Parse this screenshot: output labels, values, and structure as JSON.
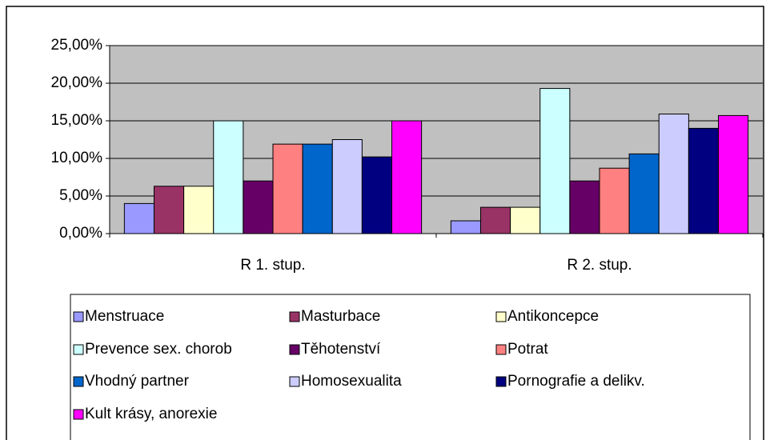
{
  "chart_data": {
    "type": "bar",
    "categories": [
      "R 1. stup.",
      "R 2. stup."
    ],
    "series": [
      {
        "name": "Menstruace",
        "color": "#9999ff",
        "values": [
          4.0,
          1.7
        ]
      },
      {
        "name": "Masturbace",
        "color": "#993366",
        "values": [
          6.3,
          3.5
        ]
      },
      {
        "name": "Antikoncepce",
        "color": "#ffffcc",
        "values": [
          6.3,
          3.5
        ]
      },
      {
        "name": "Prevence sex. chorob",
        "color": "#ccffff",
        "values": [
          15.0,
          19.3
        ]
      },
      {
        "name": "Těhotenství",
        "color": "#660066",
        "values": [
          7.0,
          7.0
        ]
      },
      {
        "name": "Potrat",
        "color": "#ff8080",
        "values": [
          11.9,
          8.7
        ]
      },
      {
        "name": "Vhodný partner",
        "color": "#0066cc",
        "values": [
          11.9,
          10.6
        ]
      },
      {
        "name": "Homosexualita",
        "color": "#ccccff",
        "values": [
          12.5,
          15.9
        ]
      },
      {
        "name": "Pornografie a delikv.",
        "color": "#000080",
        "values": [
          10.2,
          14.0
        ]
      },
      {
        "name": "Kult krásy, anorexie",
        "color": "#ff00ff",
        "values": [
          15.0,
          15.7
        ]
      }
    ],
    "ylim": [
      0,
      25
    ],
    "yticks": [
      {
        "value": 0,
        "label": "0,00%"
      },
      {
        "value": 5,
        "label": "5,00%"
      },
      {
        "value": 10,
        "label": "10,00%"
      },
      {
        "value": 15,
        "label": "15,00%"
      },
      {
        "value": 20,
        "label": "20,00%"
      },
      {
        "value": 25,
        "label": "25,00%"
      }
    ],
    "grid": true
  }
}
